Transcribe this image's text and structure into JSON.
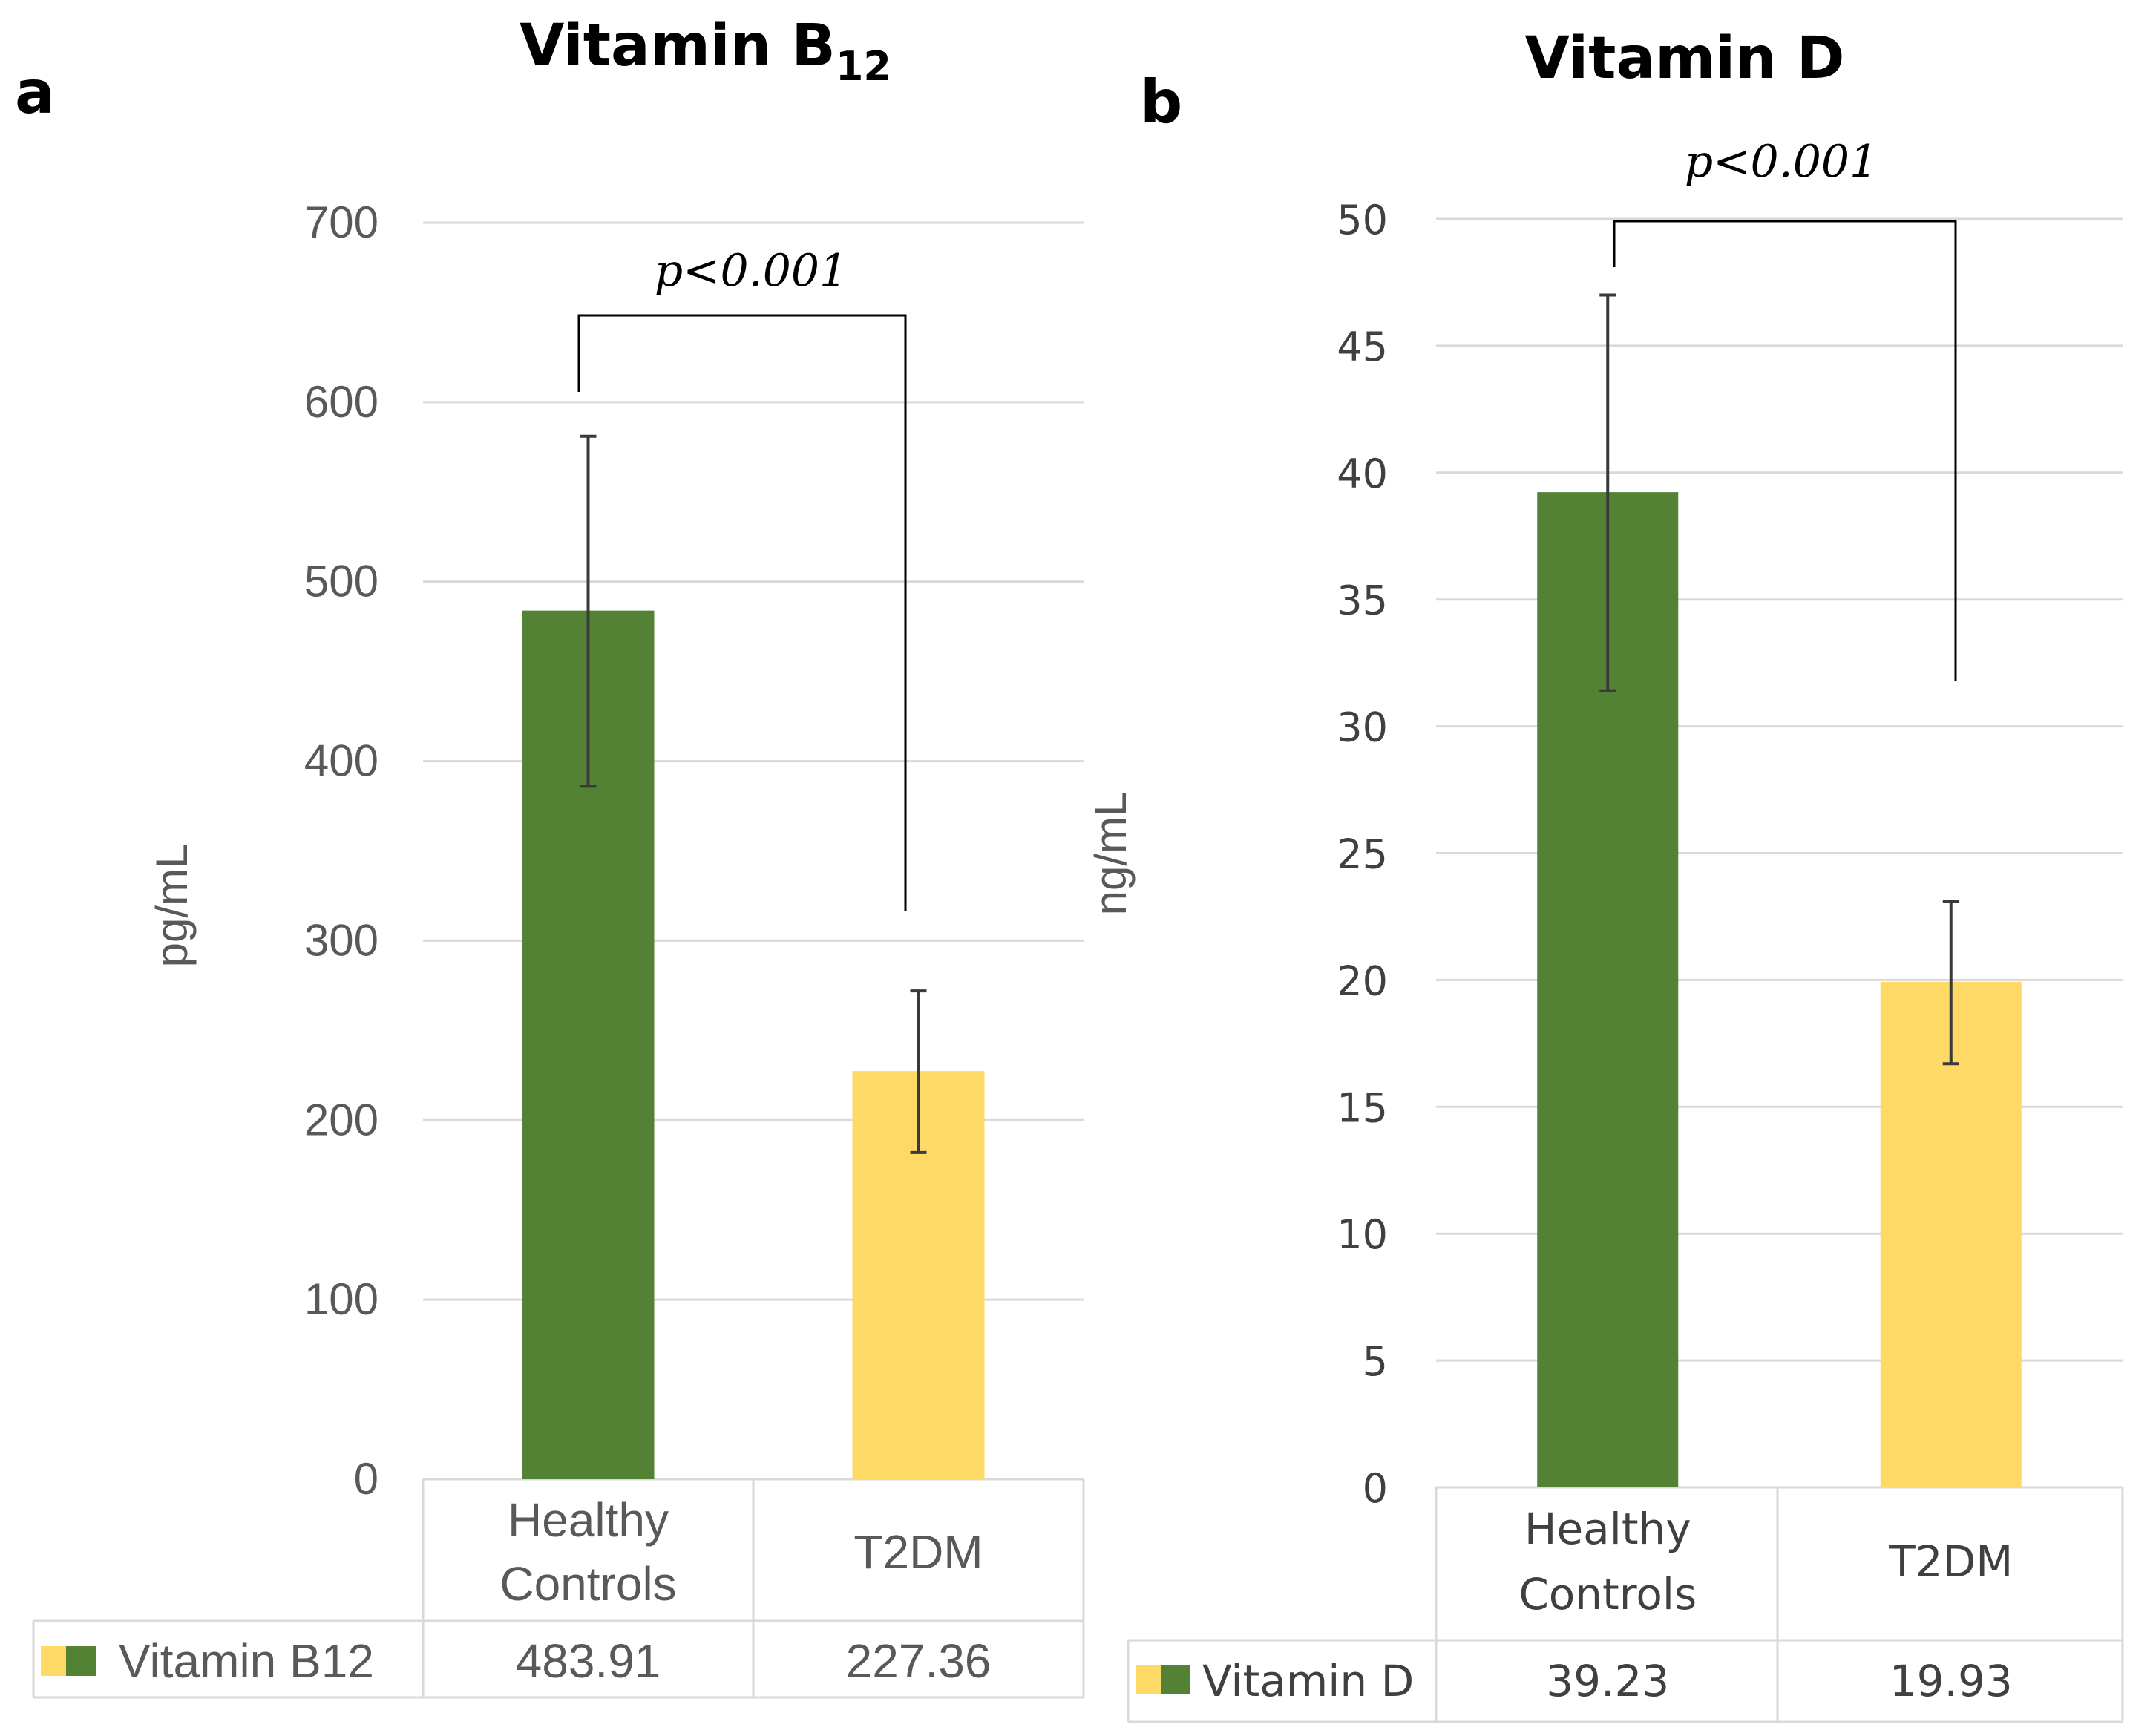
{
  "colors": {
    "healthy": "#548235",
    "t2dm": "#ffd966"
  },
  "chart_data": [
    {
      "panel_label": "a",
      "type": "bar",
      "title": "Vitamin B",
      "title_subscript": "12",
      "ylabel": "pg/mL",
      "ylim": [
        0,
        700
      ],
      "yticks": [
        "0",
        "100",
        "200",
        "300",
        "400",
        "500",
        "600",
        "700"
      ],
      "categories": [
        "Healthy Controls",
        "T2DM"
      ],
      "category_lines": [
        [
          "Healthy",
          "Controls"
        ],
        [
          "T2DM"
        ]
      ],
      "series": [
        {
          "name": "Vitamin B12",
          "values": [
            483.91,
            227.36
          ]
        }
      ],
      "value_labels": [
        "483.91",
        "227.36"
      ],
      "error_bars": [
        {
          "low": 386,
          "high": 581
        },
        {
          "low": 182,
          "high": 272
        }
      ],
      "significance": "p<0.001"
    },
    {
      "panel_label": "b",
      "type": "bar",
      "title": "Vitamin D",
      "ylabel": "ng/mL",
      "ylim": [
        0,
        50
      ],
      "yticks": [
        "0",
        "5",
        "10",
        "15",
        "20",
        "25",
        "30",
        "35",
        "40",
        "45",
        "50"
      ],
      "categories": [
        "Healthy Controls",
        "T2DM"
      ],
      "category_lines": [
        [
          "Healthy",
          "Controls"
        ],
        [
          "T2DM"
        ]
      ],
      "series": [
        {
          "name": "Vitamin D",
          "values": [
            39.23,
            19.93
          ]
        }
      ],
      "value_labels": [
        "39.23",
        "19.93"
      ],
      "error_bars": [
        {
          "low": 31.4,
          "high": 47
        },
        {
          "low": 16.7,
          "high": 23.1
        }
      ],
      "significance": "p<0.001"
    }
  ]
}
